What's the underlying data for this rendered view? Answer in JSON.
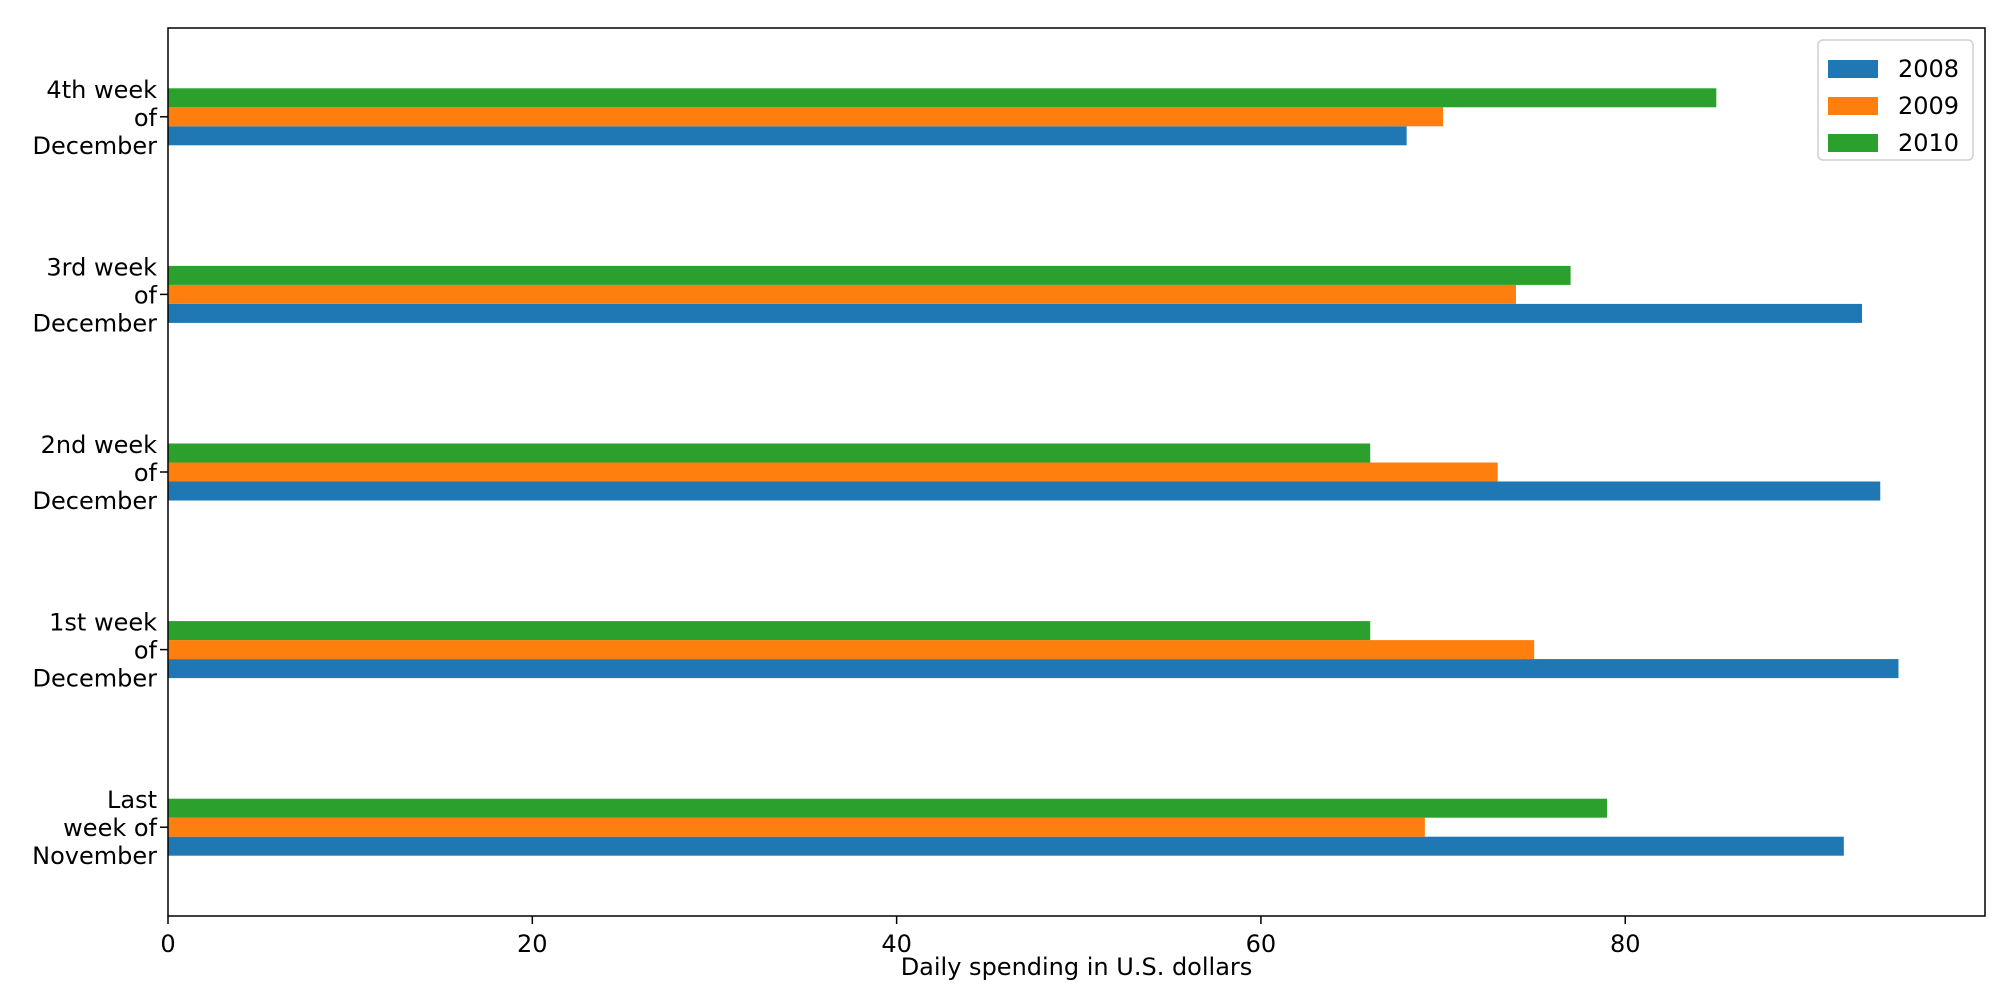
{
  "chart_data": {
    "type": "bar",
    "orientation": "horizontal",
    "categories": [
      [
        "Last",
        "week of",
        "November"
      ],
      [
        "1st week",
        "of",
        "December"
      ],
      [
        "2nd week",
        "of",
        "December"
      ],
      [
        "3rd week",
        "of",
        "December"
      ],
      [
        "4th week",
        "of",
        "December"
      ]
    ],
    "series": [
      {
        "name": "2008",
        "color": "#1f77b4",
        "values": [
          92,
          95,
          94,
          93,
          68
        ]
      },
      {
        "name": "2009",
        "color": "#ff7f0e",
        "values": [
          69,
          75,
          73,
          74,
          70
        ]
      },
      {
        "name": "2010",
        "color": "#2ca02c",
        "values": [
          79,
          66,
          66,
          77,
          85
        ]
      }
    ],
    "title": "",
    "xlabel": "Daily spending in U.S. dollars",
    "ylabel": "",
    "xlim": [
      0,
      99.75
    ],
    "xticks": [
      0,
      20,
      40,
      60,
      80
    ],
    "grid": false,
    "legend_position": "top-right"
  }
}
